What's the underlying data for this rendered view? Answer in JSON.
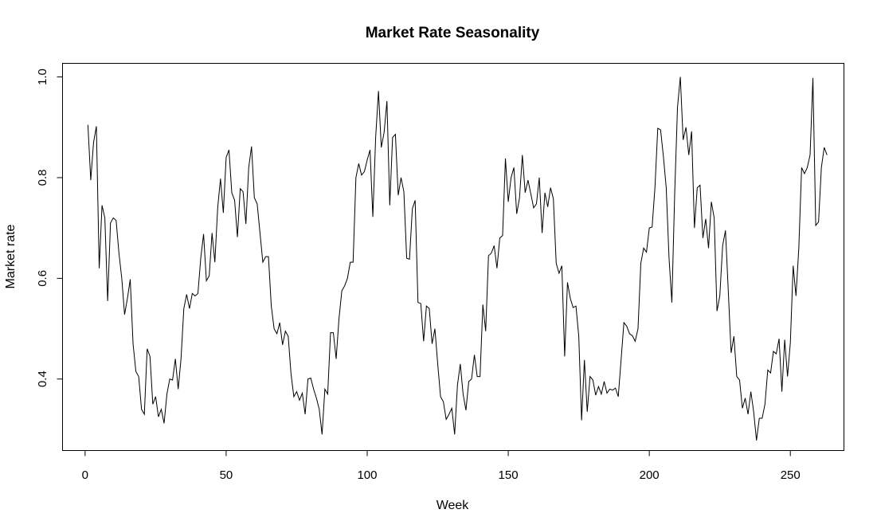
{
  "chart_data": {
    "type": "line",
    "title": "Market Rate Seasonality",
    "xlabel": "Week",
    "ylabel": "Market rate",
    "xlim": [
      -8,
      269
    ],
    "ylim": [
      0.258,
      1.027
    ],
    "xticks": [
      0,
      50,
      100,
      150,
      200,
      250
    ],
    "yticks": [
      0.4,
      0.6,
      0.8,
      1.0
    ],
    "xtick_labels": [
      "0",
      "50",
      "100",
      "150",
      "200",
      "250"
    ],
    "ytick_labels": [
      "0.4",
      "0.6",
      "0.8",
      "1.0"
    ],
    "grid": false,
    "series": [
      {
        "color": "#000000",
        "points": [
          [
            1,
            0.905
          ],
          [
            2,
            0.795
          ],
          [
            3,
            0.87
          ],
          [
            4,
            0.902
          ],
          [
            5,
            0.62
          ],
          [
            6,
            0.745
          ],
          [
            7,
            0.72
          ],
          [
            8,
            0.555
          ],
          [
            9,
            0.71
          ],
          [
            10,
            0.72
          ],
          [
            11,
            0.715
          ],
          [
            12,
            0.65
          ],
          [
            13,
            0.6
          ],
          [
            14,
            0.528
          ],
          [
            15,
            0.56
          ],
          [
            16,
            0.598
          ],
          [
            17,
            0.47
          ],
          [
            18,
            0.415
          ],
          [
            19,
            0.405
          ],
          [
            20,
            0.34
          ],
          [
            21,
            0.33
          ],
          [
            22,
            0.46
          ],
          [
            23,
            0.445
          ],
          [
            24,
            0.35
          ],
          [
            25,
            0.365
          ],
          [
            26,
            0.325
          ],
          [
            27,
            0.34
          ],
          [
            28,
            0.312
          ],
          [
            29,
            0.37
          ],
          [
            30,
            0.4
          ],
          [
            31,
            0.398
          ],
          [
            32,
            0.44
          ],
          [
            33,
            0.38
          ],
          [
            34,
            0.44
          ],
          [
            35,
            0.54
          ],
          [
            36,
            0.568
          ],
          [
            37,
            0.54
          ],
          [
            38,
            0.57
          ],
          [
            39,
            0.565
          ],
          [
            40,
            0.57
          ],
          [
            41,
            0.64
          ],
          [
            42,
            0.688
          ],
          [
            43,
            0.595
          ],
          [
            44,
            0.605
          ],
          [
            45,
            0.69
          ],
          [
            46,
            0.632
          ],
          [
            47,
            0.74
          ],
          [
            48,
            0.798
          ],
          [
            49,
            0.73
          ],
          [
            50,
            0.84
          ],
          [
            51,
            0.855
          ],
          [
            52,
            0.77
          ],
          [
            53,
            0.755
          ],
          [
            54,
            0.682
          ],
          [
            55,
            0.778
          ],
          [
            56,
            0.772
          ],
          [
            57,
            0.708
          ],
          [
            58,
            0.82
          ],
          [
            59,
            0.862
          ],
          [
            60,
            0.76
          ],
          [
            61,
            0.748
          ],
          [
            62,
            0.69
          ],
          [
            63,
            0.632
          ],
          [
            64,
            0.643
          ],
          [
            65,
            0.643
          ],
          [
            66,
            0.545
          ],
          [
            67,
            0.5
          ],
          [
            68,
            0.49
          ],
          [
            69,
            0.512
          ],
          [
            70,
            0.468
          ],
          [
            71,
            0.495
          ],
          [
            72,
            0.485
          ],
          [
            73,
            0.41
          ],
          [
            74,
            0.365
          ],
          [
            75,
            0.375
          ],
          [
            76,
            0.358
          ],
          [
            77,
            0.372
          ],
          [
            78,
            0.33
          ],
          [
            79,
            0.4
          ],
          [
            80,
            0.402
          ],
          [
            81,
            0.38
          ],
          [
            82,
            0.362
          ],
          [
            83,
            0.34
          ],
          [
            84,
            0.29
          ],
          [
            85,
            0.38
          ],
          [
            86,
            0.37
          ],
          [
            87,
            0.492
          ],
          [
            88,
            0.492
          ],
          [
            89,
            0.44
          ],
          [
            90,
            0.52
          ],
          [
            91,
            0.575
          ],
          [
            92,
            0.585
          ],
          [
            93,
            0.6
          ],
          [
            94,
            0.632
          ],
          [
            95,
            0.632
          ],
          [
            96,
            0.8
          ],
          [
            97,
            0.828
          ],
          [
            98,
            0.805
          ],
          [
            99,
            0.812
          ],
          [
            100,
            0.835
          ],
          [
            101,
            0.855
          ],
          [
            102,
            0.722
          ],
          [
            103,
            0.88
          ],
          [
            104,
            0.972
          ],
          [
            105,
            0.86
          ],
          [
            106,
            0.89
          ],
          [
            107,
            0.952
          ],
          [
            108,
            0.745
          ],
          [
            109,
            0.88
          ],
          [
            110,
            0.886
          ],
          [
            111,
            0.765
          ],
          [
            112,
            0.8
          ],
          [
            113,
            0.772
          ],
          [
            114,
            0.64
          ],
          [
            115,
            0.638
          ],
          [
            116,
            0.738
          ],
          [
            117,
            0.755
          ],
          [
            118,
            0.552
          ],
          [
            119,
            0.55
          ],
          [
            120,
            0.475
          ],
          [
            121,
            0.545
          ],
          [
            122,
            0.54
          ],
          [
            123,
            0.47
          ],
          [
            124,
            0.5
          ],
          [
            125,
            0.43
          ],
          [
            126,
            0.365
          ],
          [
            127,
            0.355
          ],
          [
            128,
            0.32
          ],
          [
            129,
            0.33
          ],
          [
            130,
            0.342
          ],
          [
            131,
            0.29
          ],
          [
            132,
            0.388
          ],
          [
            133,
            0.43
          ],
          [
            134,
            0.37
          ],
          [
            135,
            0.338
          ],
          [
            136,
            0.395
          ],
          [
            137,
            0.4
          ],
          [
            138,
            0.448
          ],
          [
            139,
            0.405
          ],
          [
            140,
            0.405
          ],
          [
            141,
            0.548
          ],
          [
            142,
            0.495
          ],
          [
            143,
            0.645
          ],
          [
            144,
            0.65
          ],
          [
            145,
            0.665
          ],
          [
            146,
            0.62
          ],
          [
            147,
            0.68
          ],
          [
            148,
            0.685
          ],
          [
            149,
            0.838
          ],
          [
            150,
            0.752
          ],
          [
            151,
            0.8
          ],
          [
            152,
            0.82
          ],
          [
            153,
            0.728
          ],
          [
            154,
            0.76
          ],
          [
            155,
            0.845
          ],
          [
            156,
            0.77
          ],
          [
            157,
            0.795
          ],
          [
            158,
            0.768
          ],
          [
            159,
            0.74
          ],
          [
            160,
            0.748
          ],
          [
            161,
            0.8
          ],
          [
            162,
            0.69
          ],
          [
            163,
            0.77
          ],
          [
            164,
            0.742
          ],
          [
            165,
            0.78
          ],
          [
            166,
            0.758
          ],
          [
            167,
            0.63
          ],
          [
            168,
            0.61
          ],
          [
            169,
            0.625
          ],
          [
            170,
            0.445
          ],
          [
            171,
            0.592
          ],
          [
            172,
            0.56
          ],
          [
            173,
            0.542
          ],
          [
            174,
            0.545
          ],
          [
            175,
            0.485
          ],
          [
            176,
            0.318
          ],
          [
            177,
            0.438
          ],
          [
            178,
            0.335
          ],
          [
            179,
            0.405
          ],
          [
            180,
            0.398
          ],
          [
            181,
            0.368
          ],
          [
            182,
            0.385
          ],
          [
            183,
            0.37
          ],
          [
            184,
            0.395
          ],
          [
            185,
            0.372
          ],
          [
            186,
            0.38
          ],
          [
            187,
            0.378
          ],
          [
            188,
            0.382
          ],
          [
            189,
            0.365
          ],
          [
            190,
            0.438
          ],
          [
            191,
            0.512
          ],
          [
            192,
            0.505
          ],
          [
            193,
            0.49
          ],
          [
            194,
            0.486
          ],
          [
            195,
            0.475
          ],
          [
            196,
            0.5
          ],
          [
            197,
            0.63
          ],
          [
            198,
            0.66
          ],
          [
            199,
            0.652
          ],
          [
            200,
            0.7
          ],
          [
            201,
            0.702
          ],
          [
            202,
            0.78
          ],
          [
            203,
            0.898
          ],
          [
            204,
            0.895
          ],
          [
            205,
            0.842
          ],
          [
            206,
            0.78
          ],
          [
            207,
            0.64
          ],
          [
            208,
            0.552
          ],
          [
            209,
            0.768
          ],
          [
            210,
            0.94
          ],
          [
            211,
            1.0
          ],
          [
            212,
            0.875
          ],
          [
            213,
            0.9
          ],
          [
            214,
            0.845
          ],
          [
            215,
            0.892
          ],
          [
            216,
            0.7
          ],
          [
            217,
            0.78
          ],
          [
            218,
            0.785
          ],
          [
            219,
            0.68
          ],
          [
            220,
            0.718
          ],
          [
            221,
            0.66
          ],
          [
            222,
            0.752
          ],
          [
            223,
            0.72
          ],
          [
            224,
            0.535
          ],
          [
            225,
            0.565
          ],
          [
            226,
            0.665
          ],
          [
            227,
            0.695
          ],
          [
            228,
            0.575
          ],
          [
            229,
            0.452
          ],
          [
            230,
            0.485
          ],
          [
            231,
            0.405
          ],
          [
            232,
            0.398
          ],
          [
            233,
            0.342
          ],
          [
            234,
            0.362
          ],
          [
            235,
            0.33
          ],
          [
            236,
            0.375
          ],
          [
            237,
            0.335
          ],
          [
            238,
            0.278
          ],
          [
            239,
            0.322
          ],
          [
            240,
            0.322
          ],
          [
            241,
            0.35
          ],
          [
            242,
            0.418
          ],
          [
            243,
            0.412
          ],
          [
            244,
            0.455
          ],
          [
            245,
            0.45
          ],
          [
            246,
            0.48
          ],
          [
            247,
            0.375
          ],
          [
            248,
            0.478
          ],
          [
            249,
            0.405
          ],
          [
            250,
            0.472
          ],
          [
            251,
            0.625
          ],
          [
            252,
            0.565
          ],
          [
            253,
            0.66
          ],
          [
            254,
            0.82
          ],
          [
            255,
            0.808
          ],
          [
            256,
            0.82
          ],
          [
            257,
            0.845
          ],
          [
            258,
            0.998
          ],
          [
            259,
            0.705
          ],
          [
            260,
            0.712
          ],
          [
            261,
            0.82
          ],
          [
            262,
            0.86
          ],
          [
            263,
            0.845
          ]
        ]
      }
    ]
  }
}
